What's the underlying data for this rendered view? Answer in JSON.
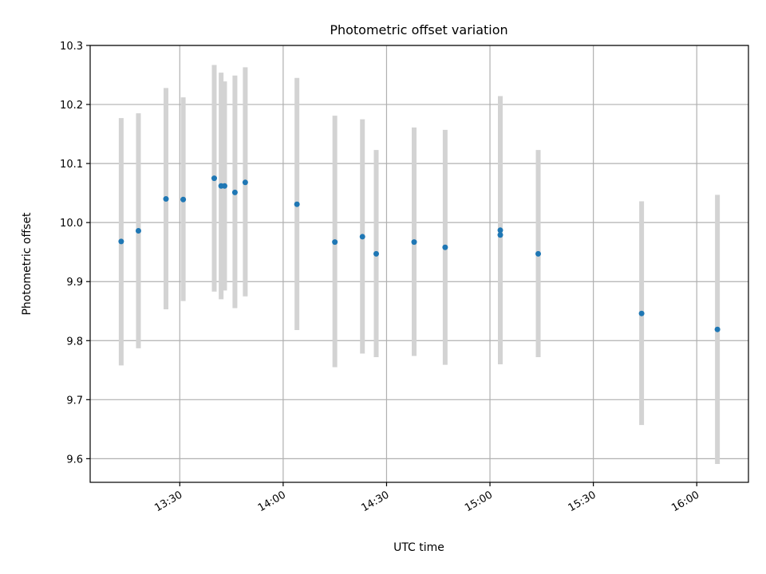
{
  "chart_data": {
    "type": "scatter",
    "title": "Photometric offset variation",
    "xlabel": "UTC time",
    "ylabel": "Photometric offset",
    "x_unit": "time HH:MM (UTC)",
    "xlim": [
      "13:04",
      "16:15"
    ],
    "ylim": [
      9.56,
      10.3
    ],
    "x_ticks": [
      "13:30",
      "14:00",
      "14:30",
      "15:00",
      "15:30",
      "16:00"
    ],
    "y_ticks": [
      "9.6",
      "9.7",
      "9.8",
      "9.9",
      "10.0",
      "10.1",
      "10.2",
      "10.3"
    ],
    "grid": true,
    "marker_color": "#1f77b4",
    "errorbar_color": "#d3d3d3",
    "points": [
      {
        "time": "13:13",
        "y": 9.968,
        "ylow": 9.758,
        "yhigh": 10.177
      },
      {
        "time": "13:18",
        "y": 9.986,
        "ylow": 9.787,
        "yhigh": 10.185
      },
      {
        "time": "13:26",
        "y": 10.04,
        "ylow": 9.853,
        "yhigh": 10.228
      },
      {
        "time": "13:31",
        "y": 10.039,
        "ylow": 9.867,
        "yhigh": 10.212
      },
      {
        "time": "13:40",
        "y": 10.075,
        "ylow": 9.883,
        "yhigh": 10.267
      },
      {
        "time": "13:42",
        "y": 10.062,
        "ylow": 9.87,
        "yhigh": 10.254
      },
      {
        "time": "13:43",
        "y": 10.062,
        "ylow": 9.885,
        "yhigh": 10.239
      },
      {
        "time": "13:46",
        "y": 10.051,
        "ylow": 9.855,
        "yhigh": 10.249
      },
      {
        "time": "13:49",
        "y": 10.068,
        "ylow": 9.875,
        "yhigh": 10.263
      },
      {
        "time": "14:04",
        "y": 10.031,
        "ylow": 9.818,
        "yhigh": 10.245
      },
      {
        "time": "14:15",
        "y": 9.967,
        "ylow": 9.755,
        "yhigh": 10.181
      },
      {
        "time": "14:23",
        "y": 9.976,
        "ylow": 9.778,
        "yhigh": 10.175
      },
      {
        "time": "14:27",
        "y": 9.947,
        "ylow": 9.772,
        "yhigh": 10.123
      },
      {
        "time": "14:38",
        "y": 9.967,
        "ylow": 9.774,
        "yhigh": 10.161
      },
      {
        "time": "14:47",
        "y": 9.958,
        "ylow": 9.759,
        "yhigh": 10.157
      },
      {
        "time": "15:03",
        "y": 9.987,
        "ylow": 9.76,
        "yhigh": 10.214
      },
      {
        "time": "15:03",
        "y": 9.979,
        "ylow": 9.76,
        "yhigh": 10.214
      },
      {
        "time": "15:14",
        "y": 9.947,
        "ylow": 9.772,
        "yhigh": 10.123
      },
      {
        "time": "15:44",
        "y": 9.846,
        "ylow": 9.657,
        "yhigh": 10.036
      },
      {
        "time": "16:06",
        "y": 9.819,
        "ylow": 9.591,
        "yhigh": 10.047
      }
    ]
  }
}
